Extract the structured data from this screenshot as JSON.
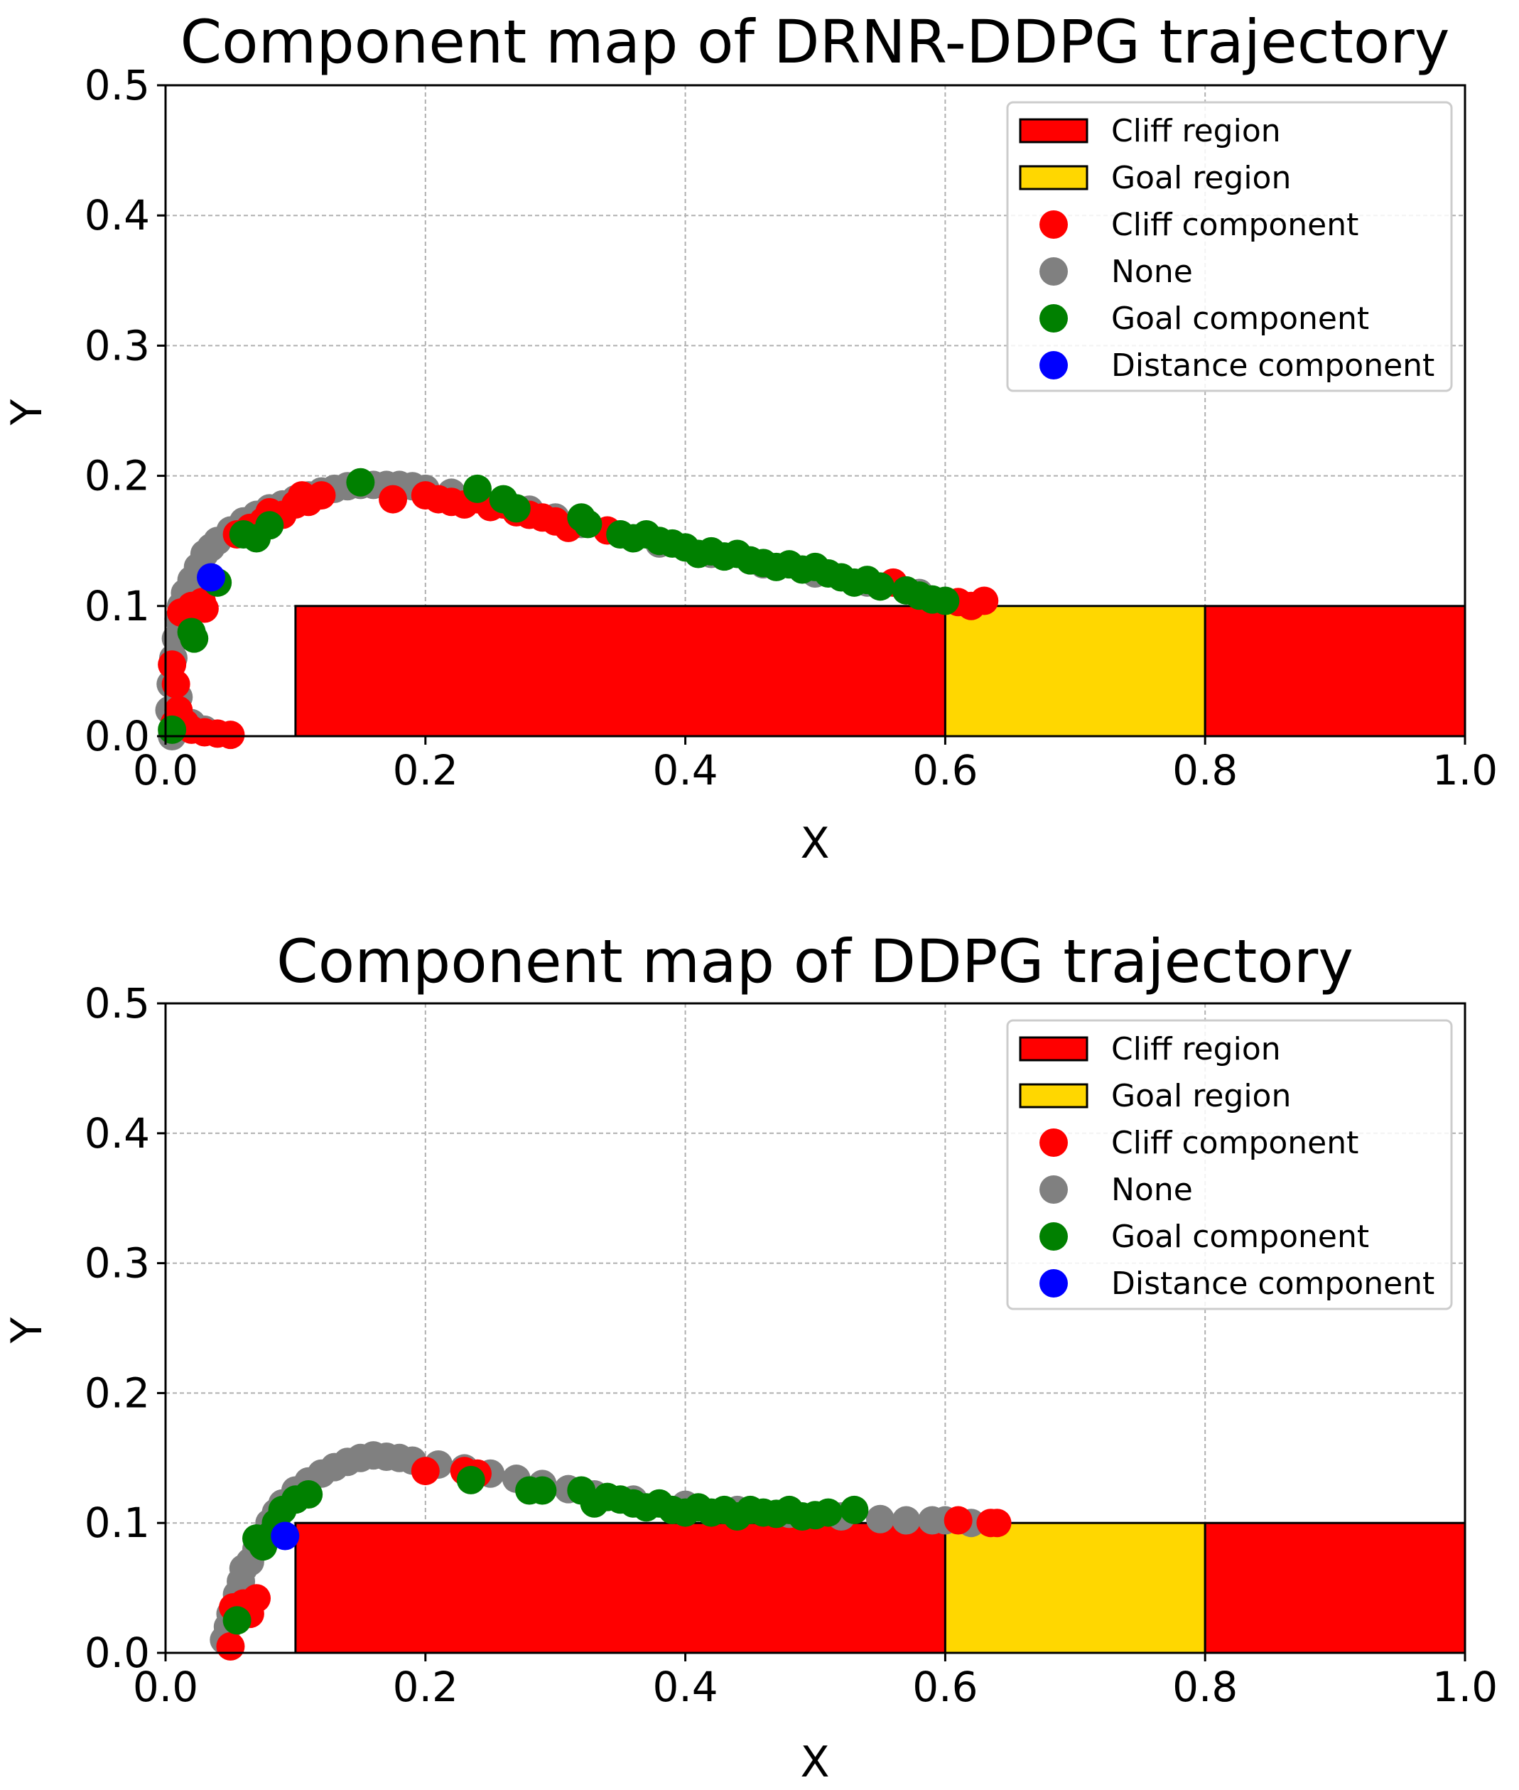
{
  "chart_data": [
    {
      "type": "scatter",
      "title": "Component map of DRNR-DDPG trajectory",
      "xlabel": "X",
      "ylabel": "Y",
      "xlim": [
        0.0,
        1.0
      ],
      "ylim": [
        0.0,
        0.5
      ],
      "xticks": [
        "0.0",
        "0.2",
        "0.4",
        "0.6",
        "0.8",
        "1.0"
      ],
      "yticks": [
        "0.0",
        "0.1",
        "0.2",
        "0.3",
        "0.4",
        "0.5"
      ],
      "grid": true,
      "legend_position": "top-right",
      "legend": [
        "Cliff region",
        "Goal region",
        "Cliff component",
        "None",
        "Goal component",
        "Distance component"
      ],
      "regions": [
        {
          "name": "Cliff region",
          "x0": 0.1,
          "x1": 0.6,
          "y0": 0.0,
          "y1": 0.1,
          "color": "#ff0000"
        },
        {
          "name": "Goal region",
          "x0": 0.6,
          "x1": 0.8,
          "y0": 0.0,
          "y1": 0.1,
          "color": "#ffd700"
        },
        {
          "name": "Cliff region",
          "x0": 0.8,
          "x1": 1.0,
          "y0": 0.0,
          "y1": 0.1,
          "color": "#ff0000"
        }
      ],
      "colors": {
        "cliff": "#ff0000",
        "none": "#808080",
        "goal": "#008000",
        "distance": "#0000ff"
      },
      "series": {
        "none": [
          [
            0.005,
            0.0
          ],
          [
            0.003,
            0.02
          ],
          [
            0.004,
            0.04
          ],
          [
            0.006,
            0.06
          ],
          [
            0.008,
            0.075
          ],
          [
            0.01,
            0.09
          ],
          [
            0.012,
            0.1
          ],
          [
            0.015,
            0.11
          ],
          [
            0.02,
            0.12
          ],
          [
            0.025,
            0.13
          ],
          [
            0.03,
            0.14
          ],
          [
            0.035,
            0.145
          ],
          [
            0.04,
            0.15
          ],
          [
            0.05,
            0.158
          ],
          [
            0.06,
            0.165
          ],
          [
            0.07,
            0.17
          ],
          [
            0.08,
            0.175
          ],
          [
            0.09,
            0.178
          ],
          [
            0.1,
            0.182
          ],
          [
            0.11,
            0.185
          ],
          [
            0.12,
            0.188
          ],
          [
            0.13,
            0.19
          ],
          [
            0.14,
            0.192
          ],
          [
            0.15,
            0.193
          ],
          [
            0.16,
            0.193
          ],
          [
            0.17,
            0.193
          ],
          [
            0.18,
            0.193
          ],
          [
            0.19,
            0.192
          ],
          [
            0.2,
            0.19
          ],
          [
            0.22,
            0.187
          ],
          [
            0.24,
            0.183
          ],
          [
            0.26,
            0.178
          ],
          [
            0.28,
            0.174
          ],
          [
            0.3,
            0.168
          ],
          [
            0.32,
            0.163
          ],
          [
            0.35,
            0.155
          ],
          [
            0.38,
            0.148
          ],
          [
            0.42,
            0.14
          ],
          [
            0.46,
            0.132
          ],
          [
            0.5,
            0.125
          ],
          [
            0.54,
            0.118
          ],
          [
            0.58,
            0.11
          ],
          [
            0.01,
            0.03
          ],
          [
            0.02,
            0.01
          ],
          [
            0.03,
            0.005
          ]
        ],
        "cliff": [
          [
            0.005,
            0.055
          ],
          [
            0.008,
            0.04
          ],
          [
            0.01,
            0.02
          ],
          [
            0.007,
            0.01
          ],
          [
            0.015,
            0.01
          ],
          [
            0.02,
            0.005
          ],
          [
            0.03,
            0.003
          ],
          [
            0.04,
            0.002
          ],
          [
            0.05,
            0.001
          ],
          [
            0.012,
            0.095
          ],
          [
            0.02,
            0.1
          ],
          [
            0.028,
            0.103
          ],
          [
            0.03,
            0.098
          ],
          [
            0.055,
            0.155
          ],
          [
            0.065,
            0.16
          ],
          [
            0.075,
            0.165
          ],
          [
            0.08,
            0.172
          ],
          [
            0.09,
            0.17
          ],
          [
            0.1,
            0.178
          ],
          [
            0.11,
            0.18
          ],
          [
            0.12,
            0.185
          ],
          [
            0.105,
            0.185
          ],
          [
            0.175,
            0.182
          ],
          [
            0.2,
            0.185
          ],
          [
            0.21,
            0.182
          ],
          [
            0.22,
            0.18
          ],
          [
            0.23,
            0.178
          ],
          [
            0.24,
            0.182
          ],
          [
            0.25,
            0.176
          ],
          [
            0.26,
            0.178
          ],
          [
            0.27,
            0.172
          ],
          [
            0.28,
            0.17
          ],
          [
            0.29,
            0.168
          ],
          [
            0.3,
            0.165
          ],
          [
            0.31,
            0.16
          ],
          [
            0.34,
            0.158
          ],
          [
            0.56,
            0.118
          ],
          [
            0.61,
            0.103
          ],
          [
            0.62,
            0.1
          ],
          [
            0.63,
            0.104
          ]
        ],
        "goal": [
          [
            0.005,
            0.005
          ],
          [
            0.02,
            0.08
          ],
          [
            0.022,
            0.075
          ],
          [
            0.04,
            0.118
          ],
          [
            0.06,
            0.155
          ],
          [
            0.07,
            0.152
          ],
          [
            0.08,
            0.162
          ],
          [
            0.15,
            0.195
          ],
          [
            0.24,
            0.19
          ],
          [
            0.26,
            0.182
          ],
          [
            0.27,
            0.175
          ],
          [
            0.32,
            0.168
          ],
          [
            0.325,
            0.163
          ],
          [
            0.35,
            0.155
          ],
          [
            0.36,
            0.152
          ],
          [
            0.37,
            0.155
          ],
          [
            0.38,
            0.15
          ],
          [
            0.39,
            0.148
          ],
          [
            0.4,
            0.145
          ],
          [
            0.41,
            0.14
          ],
          [
            0.42,
            0.142
          ],
          [
            0.43,
            0.138
          ],
          [
            0.44,
            0.14
          ],
          [
            0.45,
            0.135
          ],
          [
            0.46,
            0.133
          ],
          [
            0.47,
            0.13
          ],
          [
            0.48,
            0.132
          ],
          [
            0.49,
            0.128
          ],
          [
            0.5,
            0.13
          ],
          [
            0.51,
            0.125
          ],
          [
            0.52,
            0.122
          ],
          [
            0.53,
            0.118
          ],
          [
            0.54,
            0.12
          ],
          [
            0.55,
            0.115
          ],
          [
            0.57,
            0.112
          ],
          [
            0.58,
            0.108
          ],
          [
            0.59,
            0.105
          ],
          [
            0.6,
            0.104
          ]
        ],
        "distance": [
          [
            0.035,
            0.122
          ]
        ]
      }
    },
    {
      "type": "scatter",
      "title": "Component map of DDPG trajectory",
      "xlabel": "X",
      "ylabel": "Y",
      "xlim": [
        0.0,
        1.0
      ],
      "ylim": [
        0.0,
        0.5
      ],
      "xticks": [
        "0.0",
        "0.2",
        "0.4",
        "0.6",
        "0.8",
        "1.0"
      ],
      "yticks": [
        "0.0",
        "0.1",
        "0.2",
        "0.3",
        "0.4",
        "0.5"
      ],
      "grid": true,
      "legend_position": "top-right",
      "legend": [
        "Cliff region",
        "Goal region",
        "Cliff component",
        "None",
        "Goal component",
        "Distance component"
      ],
      "regions": [
        {
          "name": "Cliff region",
          "x0": 0.1,
          "x1": 0.6,
          "y0": 0.0,
          "y1": 0.1,
          "color": "#ff0000"
        },
        {
          "name": "Goal region",
          "x0": 0.6,
          "x1": 0.8,
          "y0": 0.0,
          "y1": 0.1,
          "color": "#ffd700"
        },
        {
          "name": "Cliff region",
          "x0": 0.8,
          "x1": 1.0,
          "y0": 0.0,
          "y1": 0.1,
          "color": "#ff0000"
        }
      ],
      "colors": {
        "cliff": "#ff0000",
        "none": "#808080",
        "goal": "#008000",
        "distance": "#0000ff"
      },
      "series": {
        "none": [
          [
            0.045,
            0.01
          ],
          [
            0.048,
            0.02
          ],
          [
            0.05,
            0.03
          ],
          [
            0.055,
            0.045
          ],
          [
            0.058,
            0.055
          ],
          [
            0.06,
            0.065
          ],
          [
            0.065,
            0.07
          ],
          [
            0.07,
            0.08
          ],
          [
            0.075,
            0.09
          ],
          [
            0.08,
            0.1
          ],
          [
            0.085,
            0.108
          ],
          [
            0.09,
            0.115
          ],
          [
            0.1,
            0.125
          ],
          [
            0.11,
            0.132
          ],
          [
            0.12,
            0.138
          ],
          [
            0.13,
            0.143
          ],
          [
            0.14,
            0.147
          ],
          [
            0.15,
            0.15
          ],
          [
            0.16,
            0.152
          ],
          [
            0.17,
            0.151
          ],
          [
            0.18,
            0.15
          ],
          [
            0.19,
            0.148
          ],
          [
            0.21,
            0.145
          ],
          [
            0.23,
            0.142
          ],
          [
            0.25,
            0.138
          ],
          [
            0.27,
            0.134
          ],
          [
            0.29,
            0.13
          ],
          [
            0.31,
            0.126
          ],
          [
            0.33,
            0.122
          ],
          [
            0.36,
            0.118
          ],
          [
            0.4,
            0.114
          ],
          [
            0.44,
            0.11
          ],
          [
            0.48,
            0.107
          ],
          [
            0.52,
            0.105
          ],
          [
            0.55,
            0.103
          ],
          [
            0.57,
            0.102
          ],
          [
            0.59,
            0.102
          ],
          [
            0.6,
            0.102
          ],
          [
            0.62,
            0.1
          ]
        ],
        "cliff": [
          [
            0.05,
            0.005
          ],
          [
            0.052,
            0.035
          ],
          [
            0.06,
            0.038
          ],
          [
            0.065,
            0.03
          ],
          [
            0.07,
            0.042
          ],
          [
            0.2,
            0.14
          ],
          [
            0.23,
            0.14
          ],
          [
            0.24,
            0.138
          ],
          [
            0.61,
            0.102
          ],
          [
            0.635,
            0.1
          ],
          [
            0.64,
            0.1
          ]
        ],
        "goal": [
          [
            0.055,
            0.025
          ],
          [
            0.07,
            0.088
          ],
          [
            0.075,
            0.082
          ],
          [
            0.08,
            0.09
          ],
          [
            0.085,
            0.1
          ],
          [
            0.09,
            0.11
          ],
          [
            0.1,
            0.118
          ],
          [
            0.11,
            0.122
          ],
          [
            0.235,
            0.133
          ],
          [
            0.28,
            0.125
          ],
          [
            0.29,
            0.125
          ],
          [
            0.32,
            0.125
          ],
          [
            0.33,
            0.115
          ],
          [
            0.34,
            0.12
          ],
          [
            0.35,
            0.118
          ],
          [
            0.36,
            0.115
          ],
          [
            0.37,
            0.112
          ],
          [
            0.38,
            0.115
          ],
          [
            0.39,
            0.11
          ],
          [
            0.4,
            0.108
          ],
          [
            0.41,
            0.112
          ],
          [
            0.42,
            0.108
          ],
          [
            0.43,
            0.11
          ],
          [
            0.44,
            0.105
          ],
          [
            0.45,
            0.11
          ],
          [
            0.46,
            0.108
          ],
          [
            0.47,
            0.107
          ],
          [
            0.48,
            0.11
          ],
          [
            0.49,
            0.105
          ],
          [
            0.5,
            0.106
          ],
          [
            0.51,
            0.108
          ],
          [
            0.53,
            0.11
          ]
        ],
        "distance": [
          [
            0.092,
            0.09
          ]
        ]
      }
    }
  ]
}
